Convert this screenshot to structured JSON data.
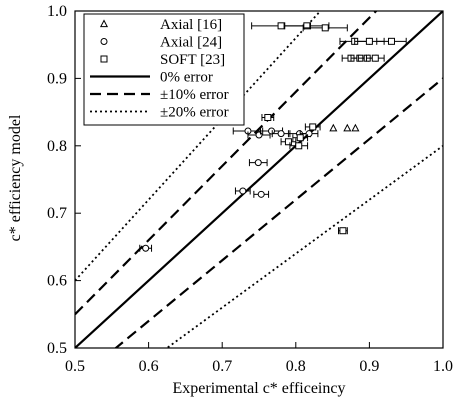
{
  "chart_data": {
    "type": "scatter",
    "xlabel": "Experimental c* efficeincy",
    "ylabel": "c* efficiency model",
    "xlim": [
      0.5,
      1.0
    ],
    "ylim": [
      0.5,
      1.0
    ],
    "xticks": [
      "0.5",
      "0.6",
      "0.7",
      "0.8",
      "0.9",
      "1.0"
    ],
    "yticks": [
      "0.5",
      "0.6",
      "0.7",
      "0.8",
      "0.9",
      "1.0"
    ],
    "grid": false,
    "legend_position": "top-left",
    "series": [
      {
        "name": "Axial [16]",
        "marker": "triangle",
        "points": [
          {
            "x": 0.851,
            "y": 0.826
          },
          {
            "x": 0.87,
            "y": 0.826
          },
          {
            "x": 0.881,
            "y": 0.826
          }
        ]
      },
      {
        "name": "Axial [24]",
        "marker": "circle",
        "points": [
          {
            "x": 0.596,
            "y": 0.648,
            "xerr": 0.008
          },
          {
            "x": 0.728,
            "y": 0.733,
            "xerr": 0.01
          },
          {
            "x": 0.753,
            "y": 0.728,
            "xerr": 0.01
          },
          {
            "x": 0.749,
            "y": 0.775,
            "xerr": 0.012
          },
          {
            "x": 0.735,
            "y": 0.822,
            "xerr": 0.02
          },
          {
            "x": 0.75,
            "y": 0.816,
            "xerr": 0.015
          },
          {
            "x": 0.767,
            "y": 0.822,
            "xerr": 0.015
          },
          {
            "x": 0.78,
            "y": 0.818,
            "xerr": 0.012
          },
          {
            "x": 0.805,
            "y": 0.818,
            "xerr": 0.015
          },
          {
            "x": 0.818,
            "y": 0.818,
            "xerr": 0.012
          }
        ]
      },
      {
        "name": "SOFT [23]",
        "marker": "square",
        "points": [
          {
            "x": 0.78,
            "y": 0.978,
            "xerr": 0.04
          },
          {
            "x": 0.815,
            "y": 0.978,
            "xerr": 0.03
          },
          {
            "x": 0.84,
            "y": 0.975,
            "xerr": 0.03
          },
          {
            "x": 0.88,
            "y": 0.955,
            "xerr": 0.02
          },
          {
            "x": 0.9,
            "y": 0.955,
            "xerr": 0.02
          },
          {
            "x": 0.93,
            "y": 0.955,
            "xerr": 0.02
          },
          {
            "x": 0.875,
            "y": 0.93,
            "xerr": 0.012
          },
          {
            "x": 0.887,
            "y": 0.93,
            "xerr": 0.012
          },
          {
            "x": 0.897,
            "y": 0.93,
            "xerr": 0.012
          },
          {
            "x": 0.908,
            "y": 0.93,
            "xerr": 0.012
          },
          {
            "x": 0.762,
            "y": 0.842,
            "xerr": 0.008
          },
          {
            "x": 0.79,
            "y": 0.806,
            "xerr": 0.01
          },
          {
            "x": 0.804,
            "y": 0.8,
            "xerr": 0.012
          },
          {
            "x": 0.806,
            "y": 0.812,
            "xerr": 0.01
          },
          {
            "x": 0.823,
            "y": 0.828,
            "xerr": 0.01
          },
          {
            "x": 0.864,
            "y": 0.674,
            "xerr": 0.006
          }
        ]
      },
      {
        "name": "0% error",
        "type": "reference_line",
        "offset": 0.0,
        "style": "solid"
      },
      {
        "name": "±10% error",
        "type": "reference_line",
        "offset": 0.1,
        "style": "dashed"
      },
      {
        "name": "±20% error",
        "type": "reference_line",
        "offset": 0.2,
        "style": "dotted"
      }
    ]
  }
}
